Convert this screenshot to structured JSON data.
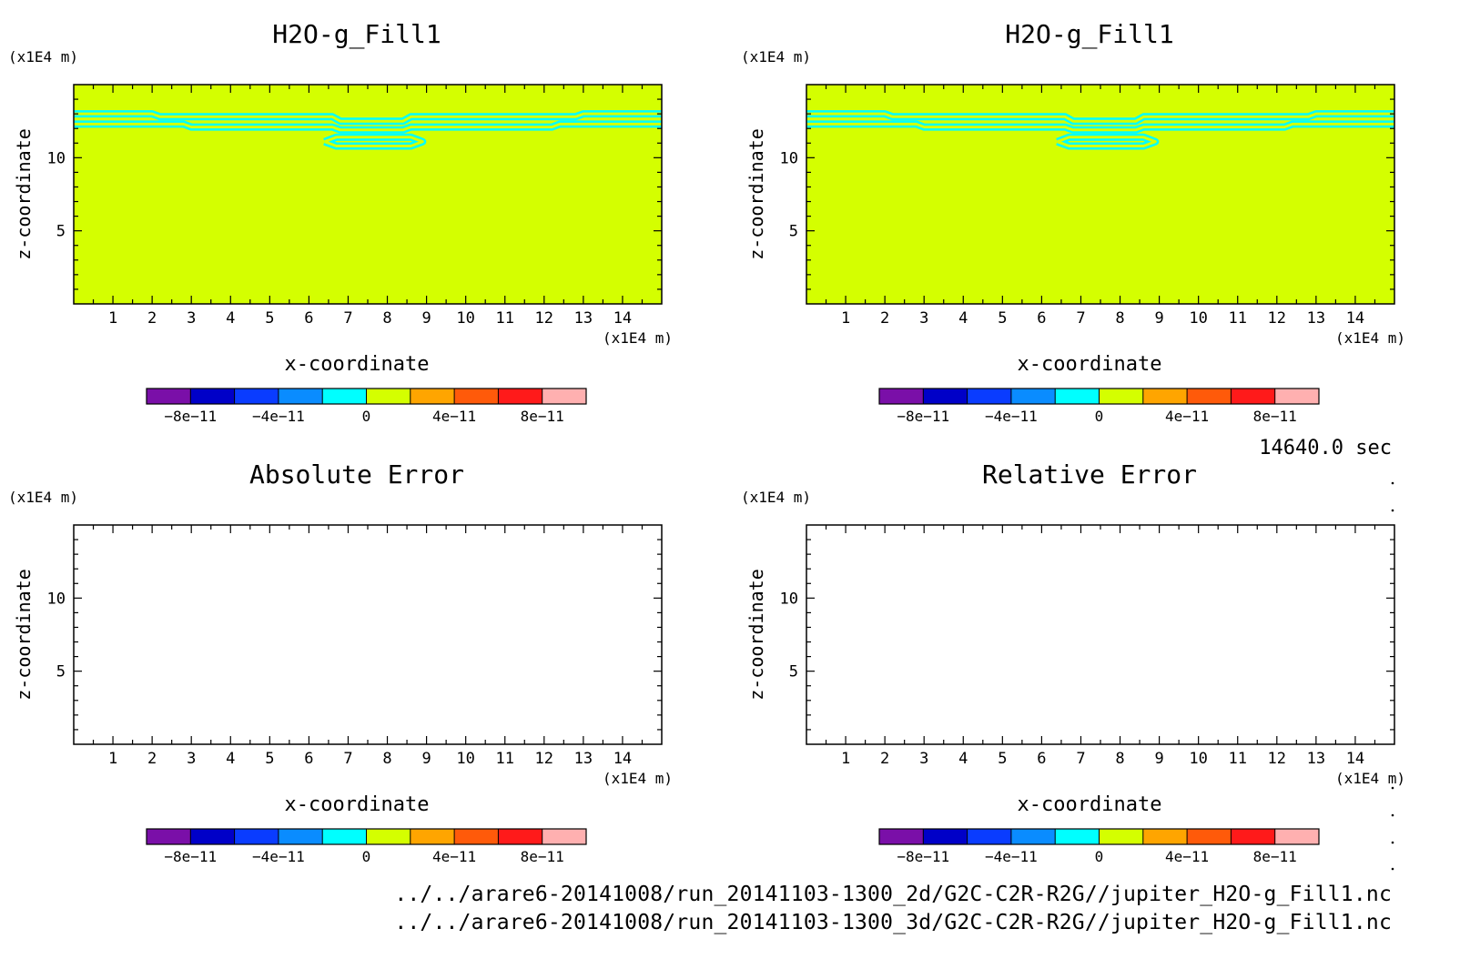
{
  "time_label": "14640.0 sec",
  "footer": {
    "line1": "../../arare6-20141008/run_20141103-1300_2d/G2C-C2R-R2G//jupiter_H2O-g_Fill1.nc",
    "line2": "../../arare6-20141008/run_20141103-1300_3d/G2C-C2R-R2G//jupiter_H2O-g_Fill1.nc"
  },
  "colorbar": {
    "colors": [
      "#7a0fa8",
      "#0000c8",
      "#0a3cff",
      "#0a8cff",
      "#00ffff",
      "#d4ff00",
      "#ffa500",
      "#ff5a0a",
      "#ff1a1a",
      "#ffb0b0"
    ],
    "tick_labels": [
      "-8e-11",
      "-4e-11",
      "0",
      "4e-11",
      "8e-11"
    ]
  },
  "chart_data": [
    {
      "type": "heatmap",
      "title": "H2O-g_Fill1",
      "xlabel": "x-coordinate",
      "ylabel": "z-coordinate",
      "xunit": "(x1E4 m)",
      "yunit": "(x1E4 m)",
      "xlim": [
        0,
        15
      ],
      "ylim": [
        0,
        15
      ],
      "xticks": [
        1,
        2,
        3,
        4,
        5,
        6,
        7,
        8,
        9,
        10,
        11,
        12,
        13,
        14
      ],
      "yticks": [
        5,
        10
      ],
      "fill_color": "#d4ff00",
      "contour_color": "#00ffff",
      "contours": [
        {
          "points": [
            [
              0,
              13.0
            ],
            [
              2.0,
              13.0
            ],
            [
              2.2,
              12.8
            ],
            [
              6.6,
              12.8
            ],
            [
              6.8,
              12.5
            ],
            [
              8.4,
              12.5
            ],
            [
              8.6,
              12.8
            ],
            [
              12.8,
              12.8
            ],
            [
              13.0,
              13.0
            ],
            [
              15,
              13.0
            ]
          ]
        },
        {
          "points": [
            [
              0,
              12.3
            ],
            [
              2.8,
              12.3
            ],
            [
              3.0,
              12.1
            ],
            [
              6.6,
              12.1
            ],
            [
              6.8,
              11.9
            ],
            [
              8.4,
              11.9
            ],
            [
              8.6,
              12.1
            ],
            [
              12.2,
              12.1
            ],
            [
              12.4,
              12.3
            ],
            [
              15,
              12.3
            ]
          ]
        },
        {
          "points": [
            [
              6.4,
              11.1
            ],
            [
              6.7,
              11.4
            ],
            [
              8.6,
              11.4
            ],
            [
              8.9,
              11.1
            ],
            [
              8.6,
              10.8
            ],
            [
              6.7,
              10.8
            ],
            [
              6.4,
              11.1
            ]
          ]
        }
      ]
    },
    {
      "type": "heatmap",
      "title": "H2O-g_Fill1",
      "xlabel": "x-coordinate",
      "ylabel": "z-coordinate",
      "xunit": "(x1E4 m)",
      "yunit": "(x1E4 m)",
      "xlim": [
        0,
        15
      ],
      "ylim": [
        0,
        15
      ],
      "xticks": [
        1,
        2,
        3,
        4,
        5,
        6,
        7,
        8,
        9,
        10,
        11,
        12,
        13,
        14
      ],
      "yticks": [
        5,
        10
      ],
      "fill_color": "#d4ff00",
      "contour_color": "#00ffff",
      "contours": [
        {
          "points": [
            [
              0,
              13.0
            ],
            [
              2.0,
              13.0
            ],
            [
              2.2,
              12.8
            ],
            [
              6.6,
              12.8
            ],
            [
              6.8,
              12.5
            ],
            [
              8.4,
              12.5
            ],
            [
              8.6,
              12.8
            ],
            [
              12.8,
              12.8
            ],
            [
              13.0,
              13.0
            ],
            [
              15,
              13.0
            ]
          ]
        },
        {
          "points": [
            [
              0,
              12.3
            ],
            [
              2.8,
              12.3
            ],
            [
              3.0,
              12.1
            ],
            [
              6.6,
              12.1
            ],
            [
              6.8,
              11.9
            ],
            [
              8.4,
              11.9
            ],
            [
              8.6,
              12.1
            ],
            [
              12.2,
              12.1
            ],
            [
              12.4,
              12.3
            ],
            [
              15,
              12.3
            ]
          ]
        },
        {
          "points": [
            [
              6.4,
              11.1
            ],
            [
              6.7,
              11.4
            ],
            [
              8.6,
              11.4
            ],
            [
              8.9,
              11.1
            ],
            [
              8.6,
              10.8
            ],
            [
              6.7,
              10.8
            ],
            [
              6.4,
              11.1
            ]
          ]
        }
      ]
    },
    {
      "type": "heatmap",
      "title": "Absolute Error",
      "xlabel": "x-coordinate",
      "ylabel": "z-coordinate",
      "xunit": "(x1E4 m)",
      "yunit": "(x1E4 m)",
      "xlim": [
        0,
        15
      ],
      "ylim": [
        0,
        15
      ],
      "xticks": [
        1,
        2,
        3,
        4,
        5,
        6,
        7,
        8,
        9,
        10,
        11,
        12,
        13,
        14
      ],
      "yticks": [
        5,
        10
      ],
      "fill_color": "#ffffff",
      "contour_color": "#00ffff",
      "contours": []
    },
    {
      "type": "heatmap",
      "title": "Relative Error",
      "xlabel": "x-coordinate",
      "ylabel": "z-coordinate",
      "xunit": "(x1E4 m)",
      "yunit": "(x1E4 m)",
      "xlim": [
        0,
        15
      ],
      "ylim": [
        0,
        15
      ],
      "xticks": [
        1,
        2,
        3,
        4,
        5,
        6,
        7,
        8,
        9,
        10,
        11,
        12,
        13,
        14
      ],
      "yticks": [
        5,
        10
      ],
      "fill_color": "#ffffff",
      "contour_color": "#00ffff",
      "contours": []
    }
  ]
}
